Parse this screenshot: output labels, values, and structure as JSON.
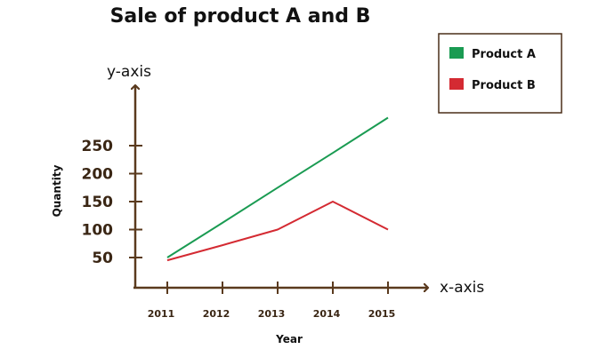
{
  "chart_data": {
    "type": "line",
    "title": "Sale of product A and B",
    "xlabel": "Year",
    "ylabel": "Quantity",
    "x_axis_name": "x-axis",
    "y_axis_name": "y-axis",
    "categories": [
      "2011",
      "2012",
      "2013",
      "2014",
      "2015"
    ],
    "y_ticks": [
      50,
      100,
      150,
      200,
      250
    ],
    "ylim": [
      0,
      300
    ],
    "series": [
      {
        "name": "Product A",
        "color": "#1a9b52",
        "values": [
          50,
          112,
          175,
          237,
          300
        ]
      },
      {
        "name": "Product B",
        "color": "#d42a32",
        "values": [
          45,
          72,
          100,
          150,
          100
        ]
      }
    ],
    "legend_position": "top-right",
    "grid": false
  }
}
